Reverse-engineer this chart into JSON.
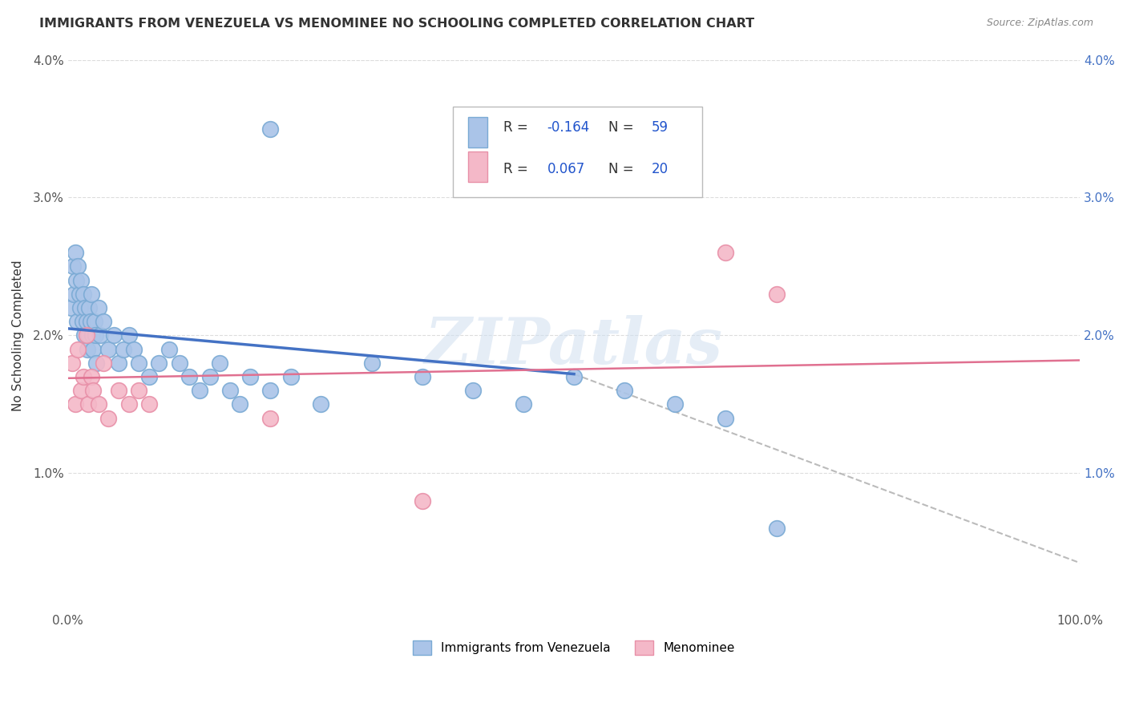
{
  "title": "IMMIGRANTS FROM VENEZUELA VS MENOMINEE NO SCHOOLING COMPLETED CORRELATION CHART",
  "source_text": "Source: ZipAtlas.com",
  "ylabel": "No Schooling Completed",
  "watermark": "ZIPatlas",
  "series1_label": "Immigrants from Venezuela",
  "series1_color": "#aac4e8",
  "series1_edge": "#7aaad4",
  "series1_line_color": "#4472c4",
  "series1_R": -0.164,
  "series1_N": 59,
  "series2_label": "Menominee",
  "series2_color": "#f4b8c8",
  "series2_edge": "#e890a8",
  "series2_line_color": "#e07090",
  "series2_R": 0.067,
  "series2_N": 20,
  "legend_R_color": "#2255cc",
  "xlim": [
    0,
    100
  ],
  "ylim": [
    0,
    4.0
  ],
  "yticks": [
    0,
    1.0,
    2.0,
    3.0,
    4.0
  ],
  "yticklabels_left": [
    "",
    "1.0%",
    "2.0%",
    "3.0%",
    "4.0%"
  ],
  "yticklabels_right": [
    "",
    "1.0%",
    "2.0%",
    "3.0%",
    "4.0%"
  ],
  "background_color": "#ffffff",
  "grid_color": "#dddddd",
  "title_color": "#333333",
  "blue_scatter_x": [
    0.3,
    0.5,
    0.6,
    0.7,
    0.8,
    0.9,
    1.0,
    1.1,
    1.2,
    1.3,
    1.4,
    1.5,
    1.6,
    1.7,
    1.8,
    1.9,
    2.0,
    2.1,
    2.2,
    2.3,
    2.4,
    2.5,
    2.6,
    2.7,
    2.8,
    3.0,
    3.2,
    3.5,
    4.0,
    4.5,
    5.0,
    5.5,
    6.0,
    6.5,
    7.0,
    8.0,
    9.0,
    10.0,
    11.0,
    12.0,
    13.0,
    14.0,
    15.0,
    16.0,
    17.0,
    18.0,
    20.0,
    22.0,
    25.0,
    30.0,
    35.0,
    40.0,
    45.0,
    50.0,
    55.0,
    60.0,
    65.0,
    70.0,
    20.0
  ],
  "blue_scatter_y": [
    2.2,
    2.5,
    2.3,
    2.6,
    2.4,
    2.1,
    2.5,
    2.3,
    2.2,
    2.4,
    2.1,
    2.3,
    2.0,
    2.2,
    2.1,
    1.9,
    2.0,
    2.2,
    2.1,
    2.3,
    2.0,
    1.9,
    2.1,
    2.0,
    1.8,
    2.2,
    2.0,
    2.1,
    1.9,
    2.0,
    1.8,
    1.9,
    2.0,
    1.9,
    1.8,
    1.7,
    1.8,
    1.9,
    1.8,
    1.7,
    1.6,
    1.7,
    1.8,
    1.6,
    1.5,
    1.7,
    1.6,
    1.7,
    1.5,
    1.8,
    1.7,
    1.6,
    1.5,
    1.7,
    1.6,
    1.5,
    1.4,
    0.6,
    3.5
  ],
  "pink_scatter_x": [
    0.4,
    0.7,
    1.0,
    1.3,
    1.5,
    1.8,
    2.0,
    2.3,
    2.5,
    3.0,
    3.5,
    4.0,
    5.0,
    6.0,
    7.0,
    8.0,
    20.0,
    35.0,
    65.0,
    70.0
  ],
  "pink_scatter_y": [
    1.8,
    1.5,
    1.9,
    1.6,
    1.7,
    2.0,
    1.5,
    1.7,
    1.6,
    1.5,
    1.8,
    1.4,
    1.6,
    1.5,
    1.6,
    1.5,
    1.4,
    0.8,
    2.6,
    2.3
  ],
  "blue_line_x0": 0,
  "blue_line_y0": 2.05,
  "blue_line_x1": 50,
  "blue_line_y1": 1.72,
  "blue_dash_x0": 50,
  "blue_dash_y0": 1.72,
  "blue_dash_x1": 100,
  "blue_dash_y1": 0.35,
  "pink_line_x0": 0,
  "pink_line_y0": 1.69,
  "pink_line_x1": 100,
  "pink_line_y1": 1.82
}
